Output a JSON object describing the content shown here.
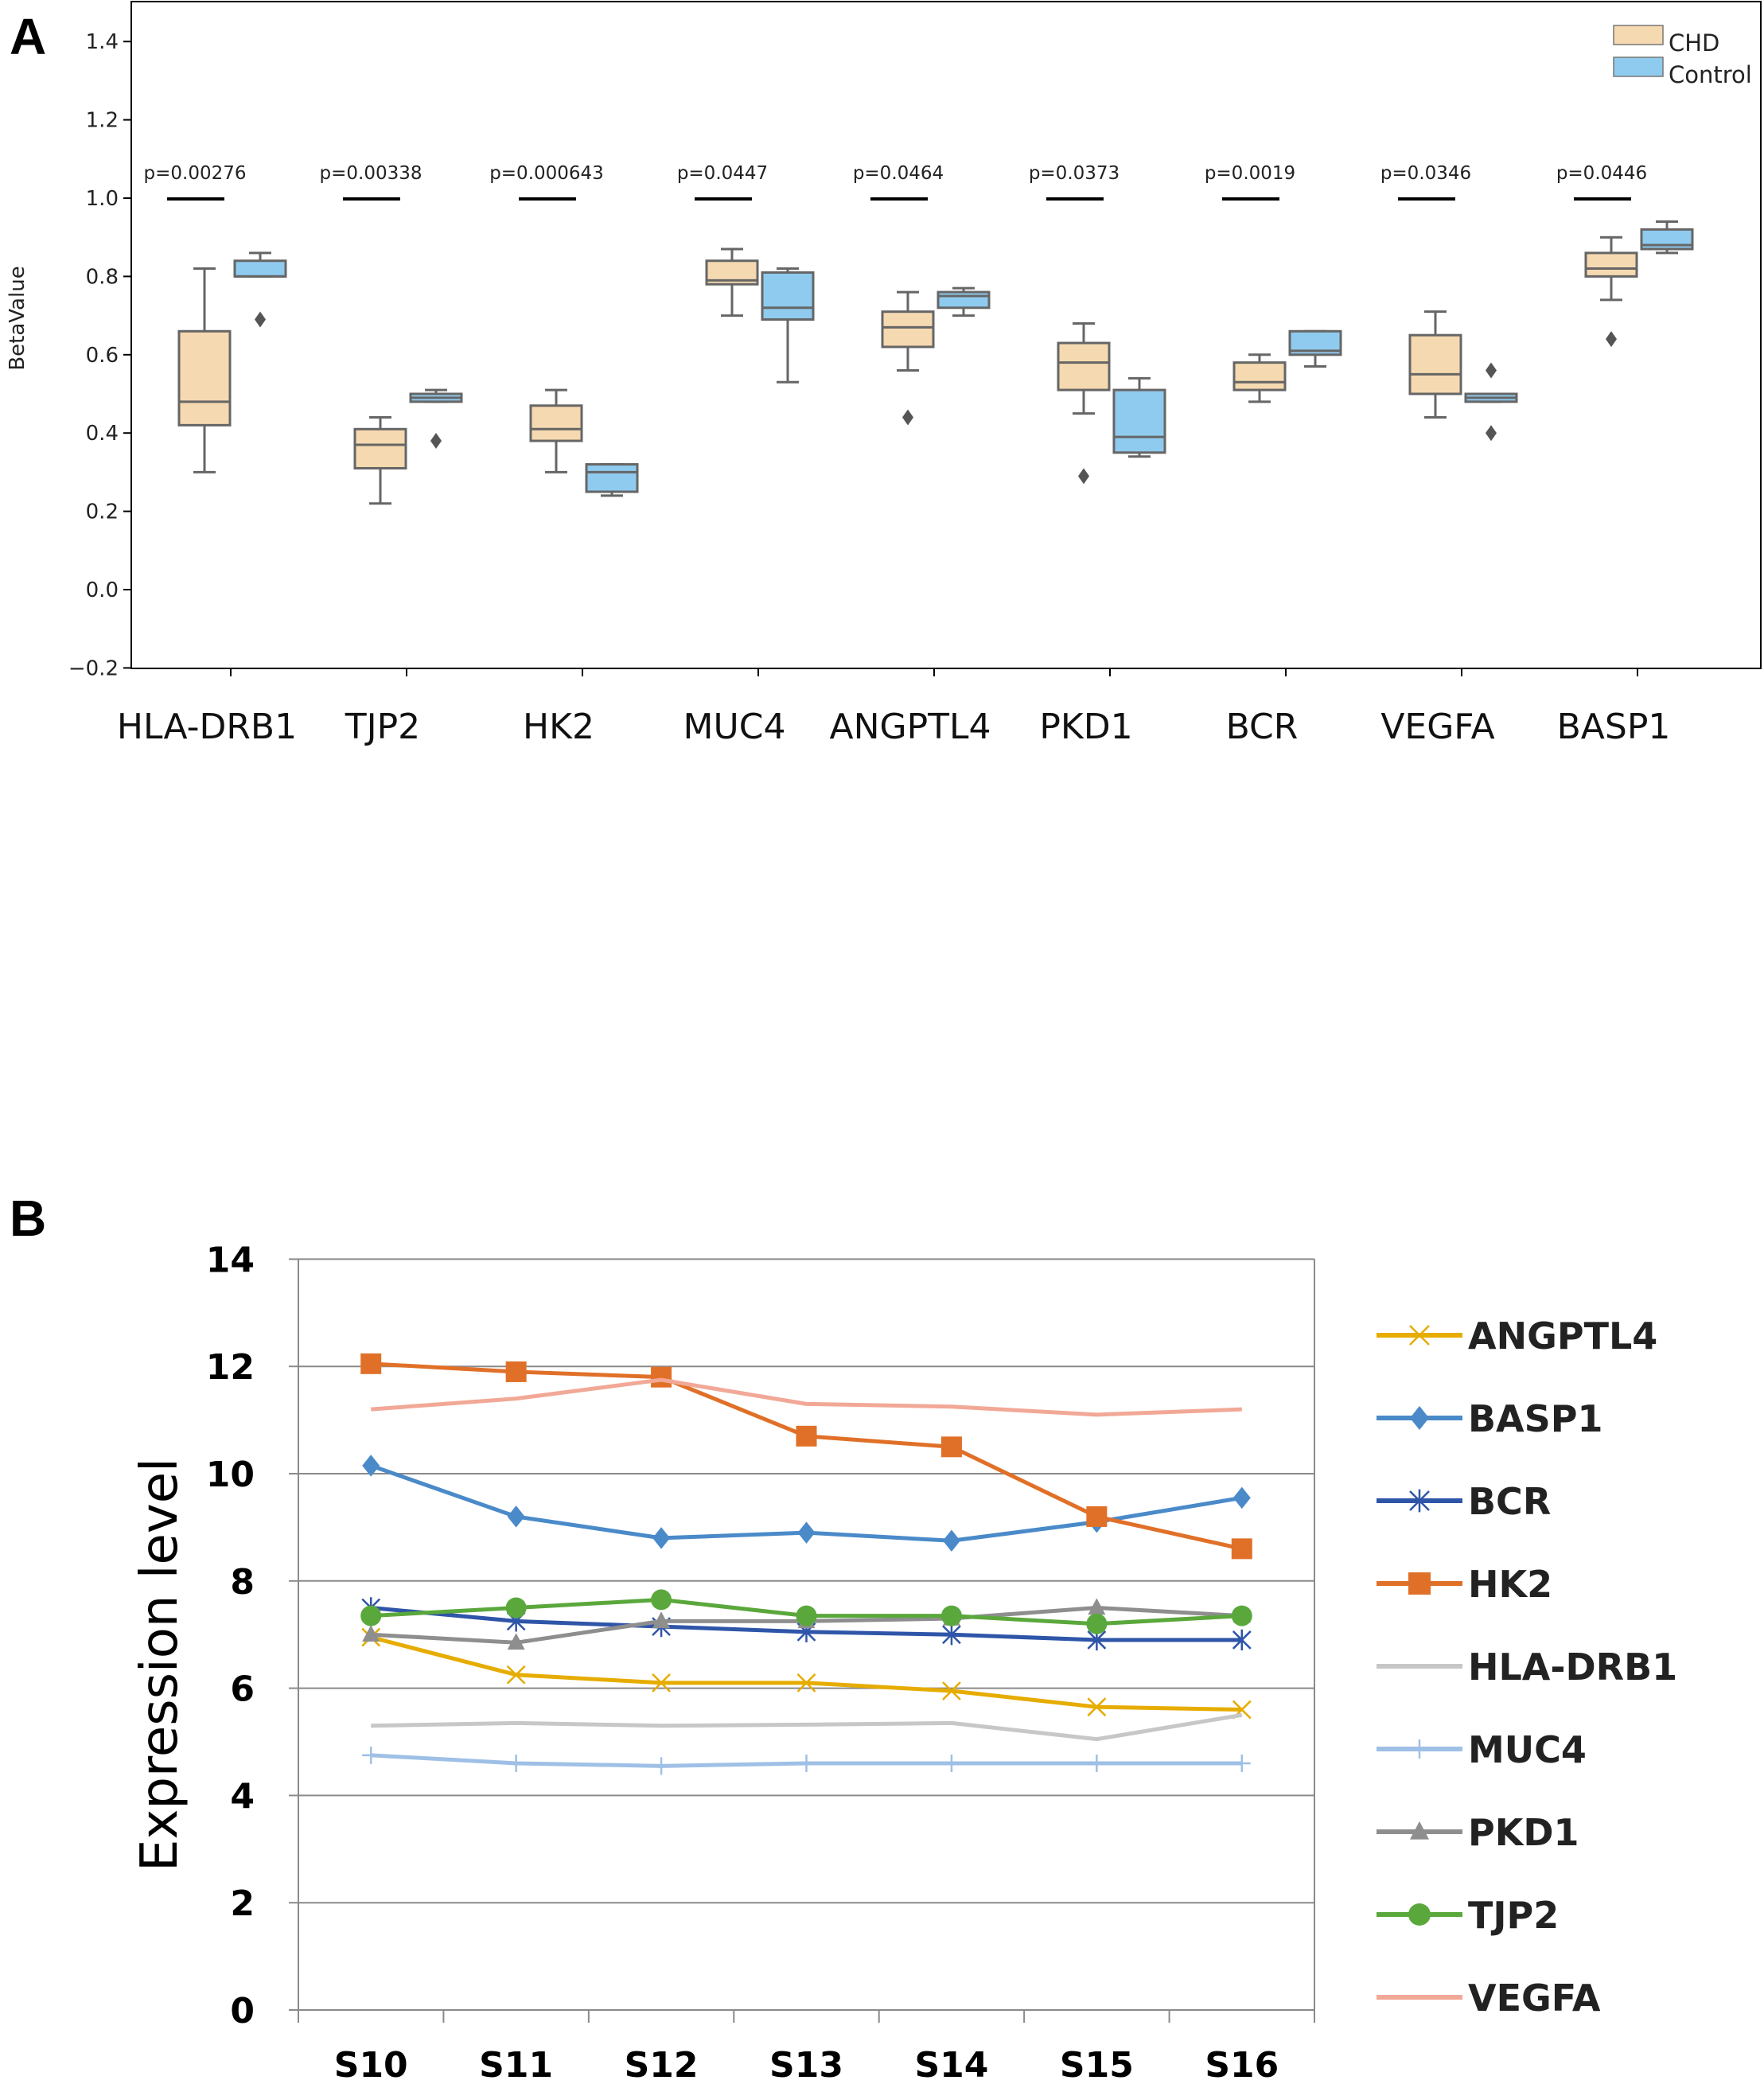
{
  "panels": {
    "a_letter": "A",
    "b_letter": "B"
  },
  "chart_data": [
    {
      "type": "box",
      "panel": "A",
      "ylabel": "BetaValue",
      "ylim": [
        -0.2,
        1.45
      ],
      "yticks": [
        -0.2,
        0.0,
        0.2,
        0.4,
        0.6,
        0.8,
        1.0,
        1.2,
        1.4
      ],
      "ytick_labels": [
        "−0.2",
        "0.0",
        "0.2",
        "0.4",
        "0.6",
        "0.8",
        "1.0",
        "1.2",
        "1.4"
      ],
      "categories": [
        "HLA-DRB1",
        "TJP2",
        "HK2",
        "MUC4",
        "ANGPTL4",
        "PKD1",
        "BCR",
        "VEGFA",
        "BASP1"
      ],
      "pvalues": [
        "p=0.00276",
        "p=0.00338",
        "p=0.000643",
        "p=0.0447",
        "p=0.0464",
        "p=0.0373",
        "p=0.0019",
        "p=0.0346",
        "p=0.0446"
      ],
      "legend": [
        {
          "name": "CHD",
          "color": "#f5d9b0"
        },
        {
          "name": "Control",
          "color": "#8fcbef"
        }
      ],
      "series": [
        {
          "name": "CHD",
          "boxes": [
            {
              "wlo": 0.3,
              "q1": 0.42,
              "med": 0.48,
              "q3": 0.66,
              "whi": 0.82,
              "fliers": []
            },
            {
              "wlo": 0.22,
              "q1": 0.31,
              "med": 0.37,
              "q3": 0.41,
              "whi": 0.44,
              "fliers": []
            },
            {
              "wlo": 0.3,
              "q1": 0.38,
              "med": 0.41,
              "q3": 0.47,
              "whi": 0.51,
              "fliers": []
            },
            {
              "wlo": 0.7,
              "q1": 0.78,
              "med": 0.79,
              "q3": 0.84,
              "whi": 0.87,
              "fliers": []
            },
            {
              "wlo": 0.56,
              "q1": 0.62,
              "med": 0.67,
              "q3": 0.71,
              "whi": 0.76,
              "fliers": [
                0.44
              ]
            },
            {
              "wlo": 0.45,
              "q1": 0.51,
              "med": 0.58,
              "q3": 0.63,
              "whi": 0.68,
              "fliers": [
                0.29
              ]
            },
            {
              "wlo": 0.48,
              "q1": 0.51,
              "med": 0.53,
              "q3": 0.58,
              "whi": 0.6,
              "fliers": []
            },
            {
              "wlo": 0.44,
              "q1": 0.5,
              "med": 0.55,
              "q3": 0.65,
              "whi": 0.71,
              "fliers": []
            },
            {
              "wlo": 0.74,
              "q1": 0.8,
              "med": 0.82,
              "q3": 0.86,
              "whi": 0.9,
              "fliers": [
                0.64
              ]
            }
          ]
        },
        {
          "name": "Control",
          "boxes": [
            {
              "wlo": 0.8,
              "q1": 0.8,
              "med": 0.8,
              "q3": 0.84,
              "whi": 0.86,
              "fliers": [
                0.69
              ]
            },
            {
              "wlo": 0.48,
              "q1": 0.48,
              "med": 0.49,
              "q3": 0.5,
              "whi": 0.51,
              "fliers": [
                0.38
              ]
            },
            {
              "wlo": 0.24,
              "q1": 0.25,
              "med": 0.3,
              "q3": 0.32,
              "whi": 0.32,
              "fliers": []
            },
            {
              "wlo": 0.53,
              "q1": 0.69,
              "med": 0.72,
              "q3": 0.81,
              "whi": 0.82,
              "fliers": []
            },
            {
              "wlo": 0.7,
              "q1": 0.72,
              "med": 0.75,
              "q3": 0.76,
              "whi": 0.77,
              "fliers": []
            },
            {
              "wlo": 0.34,
              "q1": 0.35,
              "med": 0.39,
              "q3": 0.51,
              "whi": 0.54,
              "fliers": []
            },
            {
              "wlo": 0.57,
              "q1": 0.6,
              "med": 0.61,
              "q3": 0.66,
              "whi": 0.66,
              "fliers": []
            },
            {
              "wlo": 0.48,
              "q1": 0.48,
              "med": 0.49,
              "q3": 0.5,
              "whi": 0.5,
              "fliers": [
                0.56,
                0.4
              ]
            },
            {
              "wlo": 0.86,
              "q1": 0.87,
              "med": 0.88,
              "q3": 0.92,
              "whi": 0.94,
              "fliers": []
            }
          ]
        }
      ]
    },
    {
      "type": "line",
      "panel": "B",
      "ylabel": "Expression level",
      "ylim": [
        0,
        14
      ],
      "yticks": [
        0,
        2,
        4,
        6,
        8,
        10,
        12,
        14
      ],
      "categories": [
        "S10",
        "S11",
        "S12",
        "S13",
        "S14",
        "S15",
        "S16"
      ],
      "grid": true,
      "legend_position": "right",
      "series": [
        {
          "name": "ANGPTL4",
          "color": "#e6ac00",
          "marker": "x",
          "values": [
            6.95,
            6.25,
            6.1,
            6.1,
            5.95,
            5.65,
            5.6
          ]
        },
        {
          "name": "BASP1",
          "color": "#4a8ac9",
          "marker": "diamond",
          "values": [
            10.15,
            9.2,
            8.8,
            8.9,
            8.75,
            9.1,
            9.55
          ]
        },
        {
          "name": "BCR",
          "color": "#2e55a8",
          "marker": "asterisk",
          "values": [
            7.5,
            7.25,
            7.15,
            7.05,
            7.0,
            6.9,
            6.9
          ]
        },
        {
          "name": "HK2",
          "color": "#e07028",
          "marker": "square",
          "values": [
            12.05,
            11.9,
            11.8,
            10.7,
            10.5,
            9.2,
            8.6
          ]
        },
        {
          "name": "HLA-DRB1",
          "color": "#c7c7c7",
          "marker": "none",
          "values": [
            5.3,
            5.35,
            5.3,
            5.32,
            5.35,
            5.05,
            5.5
          ]
        },
        {
          "name": "MUC4",
          "color": "#9fc0e6",
          "marker": "plus",
          "values": [
            4.75,
            4.6,
            4.55,
            4.6,
            4.6,
            4.6,
            4.6
          ]
        },
        {
          "name": "PKD1",
          "color": "#8e8e8e",
          "marker": "triangle",
          "values": [
            7.0,
            6.85,
            7.25,
            7.25,
            7.3,
            7.5,
            7.35
          ]
        },
        {
          "name": "TJP2",
          "color": "#5aa83c",
          "marker": "circle",
          "values": [
            7.35,
            7.5,
            7.65,
            7.35,
            7.35,
            7.2,
            7.35
          ]
        },
        {
          "name": "VEGFA",
          "color": "#f2a896",
          "marker": "none",
          "values": [
            11.2,
            11.4,
            11.75,
            11.3,
            11.25,
            11.1,
            11.2
          ]
        }
      ]
    }
  ]
}
